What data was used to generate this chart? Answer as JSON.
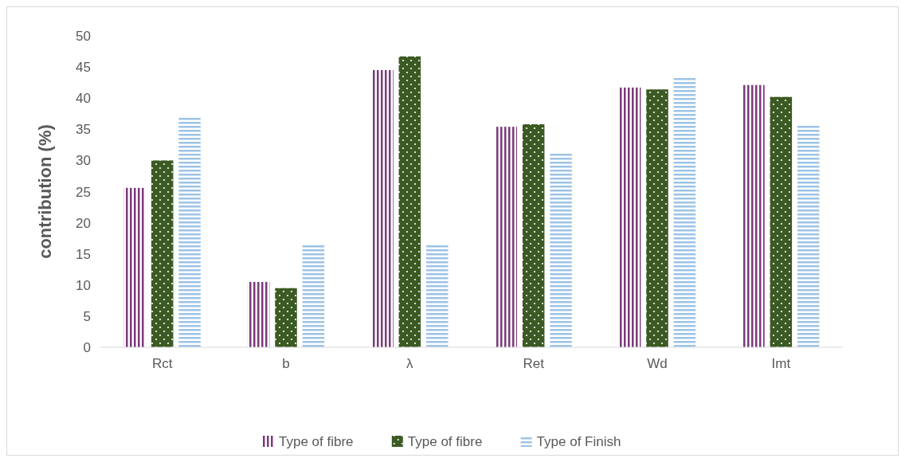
{
  "chart_data": {
    "type": "bar",
    "ylabel": "contribution  (%)",
    "categories": [
      "Rct",
      "b",
      "λ",
      "Ret",
      "Wd",
      "Imt"
    ],
    "series": [
      {
        "name": "Type of fibre",
        "color": "#7b3a7b",
        "values": [
          25.6,
          10.5,
          44.5,
          35.4,
          41.7,
          42.1
        ]
      },
      {
        "name": "Type of fibre",
        "color": "#3c5a23",
        "values": [
          30.0,
          9.5,
          46.7,
          35.8,
          41.4,
          40.2
        ]
      },
      {
        "name": "Type of Finish",
        "color": "#9dc3e6",
        "values": [
          37.1,
          16.6,
          16.6,
          31.2,
          43.5,
          35.8
        ]
      }
    ],
    "ylim": [
      0,
      50
    ],
    "yticks": [
      0,
      5,
      10,
      15,
      20,
      25,
      30,
      35,
      40,
      45,
      50
    ],
    "grid": false,
    "legend": "bottom"
  }
}
